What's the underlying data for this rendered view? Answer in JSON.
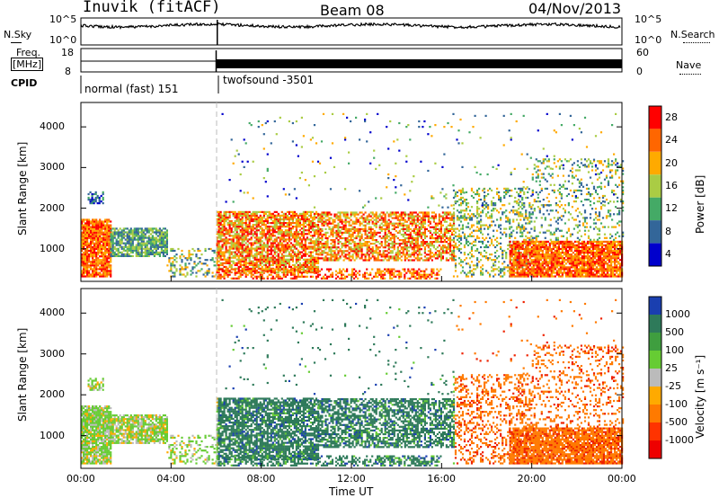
{
  "header": {
    "station": "Inuvik (fitACF)",
    "beam": "Beam 08",
    "date": "04/Nov/2013"
  },
  "panels": {
    "noise": {
      "left_label": "N.Sky",
      "right_label": "N.Search",
      "left_ticks": [
        "10^5",
        "10^0"
      ],
      "right_ticks": [
        "10^5",
        "10^0"
      ]
    },
    "freq": {
      "left_label_top": "Freq.",
      "left_label_bottom": "[MHz]",
      "right_label": "Nave",
      "left_ticks": [
        "18",
        "8"
      ],
      "right_ticks": [
        "60",
        "0"
      ]
    },
    "cpid": {
      "label": "CPID",
      "segments": [
        {
          "name": "normal (fast) 151",
          "start_hour": 0,
          "end_hour": 6
        },
        {
          "name": "twofsound -3501",
          "start_hour": 6,
          "end_hour": 24
        }
      ]
    }
  },
  "colorbars": {
    "power": {
      "label": "Power [dB]",
      "ticks": [
        "28",
        "24",
        "20",
        "16",
        "12",
        "8",
        "4"
      ],
      "colors": [
        "#ff0000",
        "#ff6600",
        "#ffaa00",
        "#aacc44",
        "#44aa66",
        "#336699",
        "#0000cc"
      ]
    },
    "velocity": {
      "label": "Velocity [m s⁻¹]",
      "ticks": [
        "1000",
        "500",
        "100",
        "25",
        "-25",
        "-100",
        "-500",
        "-1000"
      ],
      "colors": [
        "#1a3fb0",
        "#2e7a5a",
        "#3f9e3f",
        "#66cc33",
        "#bbbbbb",
        "#ffaa00",
        "#ff7a00",
        "#ff3300",
        "#ee0000"
      ]
    }
  },
  "chart_data": [
    {
      "type": "heatmap",
      "ylabel": "Slant Range [km]",
      "yticks": [
        "4000",
        "3000",
        "2000",
        "1000"
      ],
      "ylim": [
        200,
        4600
      ],
      "xlim": [
        0,
        24
      ],
      "xticks": [
        "00:00",
        "04:00",
        "08:00",
        "12:00",
        "16:00",
        "20:00",
        "00:00"
      ],
      "colorbar_label": "Power [dB]",
      "color_range": [
        0,
        30
      ]
    },
    {
      "type": "heatmap",
      "ylabel": "Slant Range [km]",
      "yticks": [
        "4000",
        "3000",
        "2000",
        "1000"
      ],
      "ylim": [
        200,
        4600
      ],
      "xlim": [
        0,
        24
      ],
      "xticks": [
        "00:00",
        "04:00",
        "08:00",
        "12:00",
        "16:00",
        "20:00",
        "00:00"
      ],
      "xlabel": "Time UT",
      "colorbar_label": "Velocity [m s⁻¹]",
      "color_range": [
        -1000,
        1000
      ]
    }
  ]
}
